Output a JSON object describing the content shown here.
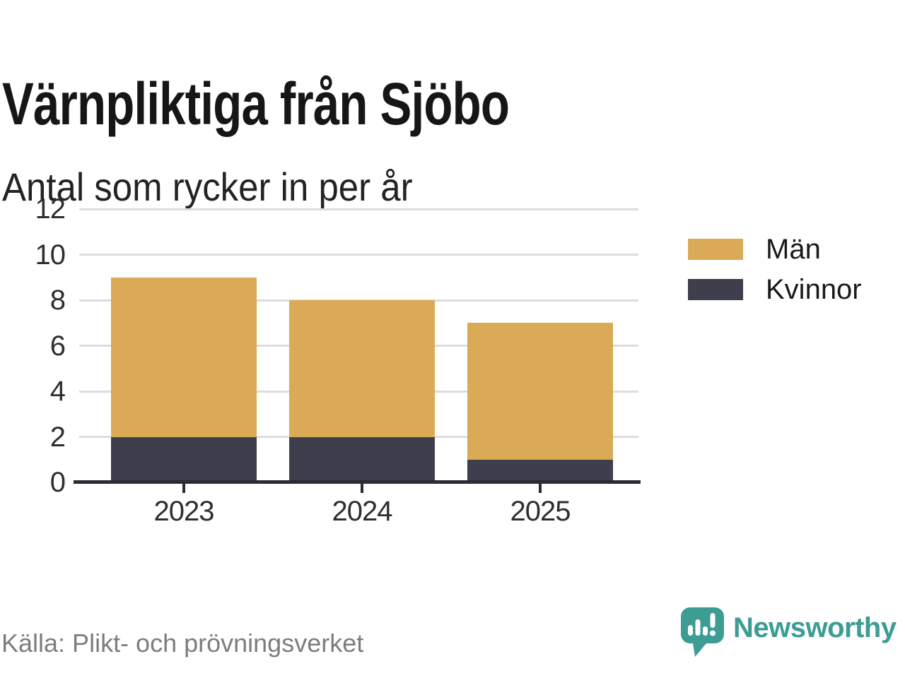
{
  "header": {
    "title": "Värnpliktiga från Sjöbo",
    "subtitle": "Antal som rycker in per år"
  },
  "chart_data": {
    "type": "bar",
    "stacked": true,
    "title": "Värnpliktiga från Sjöbo",
    "subtitle": "Antal som rycker in per år",
    "categories": [
      "2023",
      "2024",
      "2025"
    ],
    "series": [
      {
        "name": "Kvinnor",
        "color": "#3f3e4c",
        "values": [
          2,
          2,
          1
        ]
      },
      {
        "name": "Män",
        "color": "#daaa56",
        "values": [
          7,
          6,
          6
        ]
      }
    ],
    "totals": [
      9,
      8,
      7
    ],
    "xlabel": "",
    "ylabel": "",
    "ylim": [
      0,
      12
    ],
    "yticks": [
      0,
      2,
      4,
      6,
      8,
      10,
      12
    ],
    "grid": true,
    "legend_position": "right",
    "source": "Källa: Plikt- och prövningsverket"
  },
  "legend": {
    "items": [
      {
        "label": "Män",
        "color": "#daaa56"
      },
      {
        "label": "Kvinnor",
        "color": "#3f3e4c"
      }
    ]
  },
  "footer": {
    "source": "Källa: Plikt- och prövningsverket"
  },
  "brand": {
    "name": "Newsworthy",
    "color": "#3d9c94",
    "icon": "speech-bubble-bar-chart-icon"
  },
  "colors": {
    "men_bar": "#daaa56",
    "women_bar": "#3f3e4c",
    "gridline": "#dcdcdc",
    "axis": "#2c2b33",
    "text": "#2e2e2e",
    "muted_text": "#7d7d7d",
    "brand_teal": "#3d9c94"
  }
}
